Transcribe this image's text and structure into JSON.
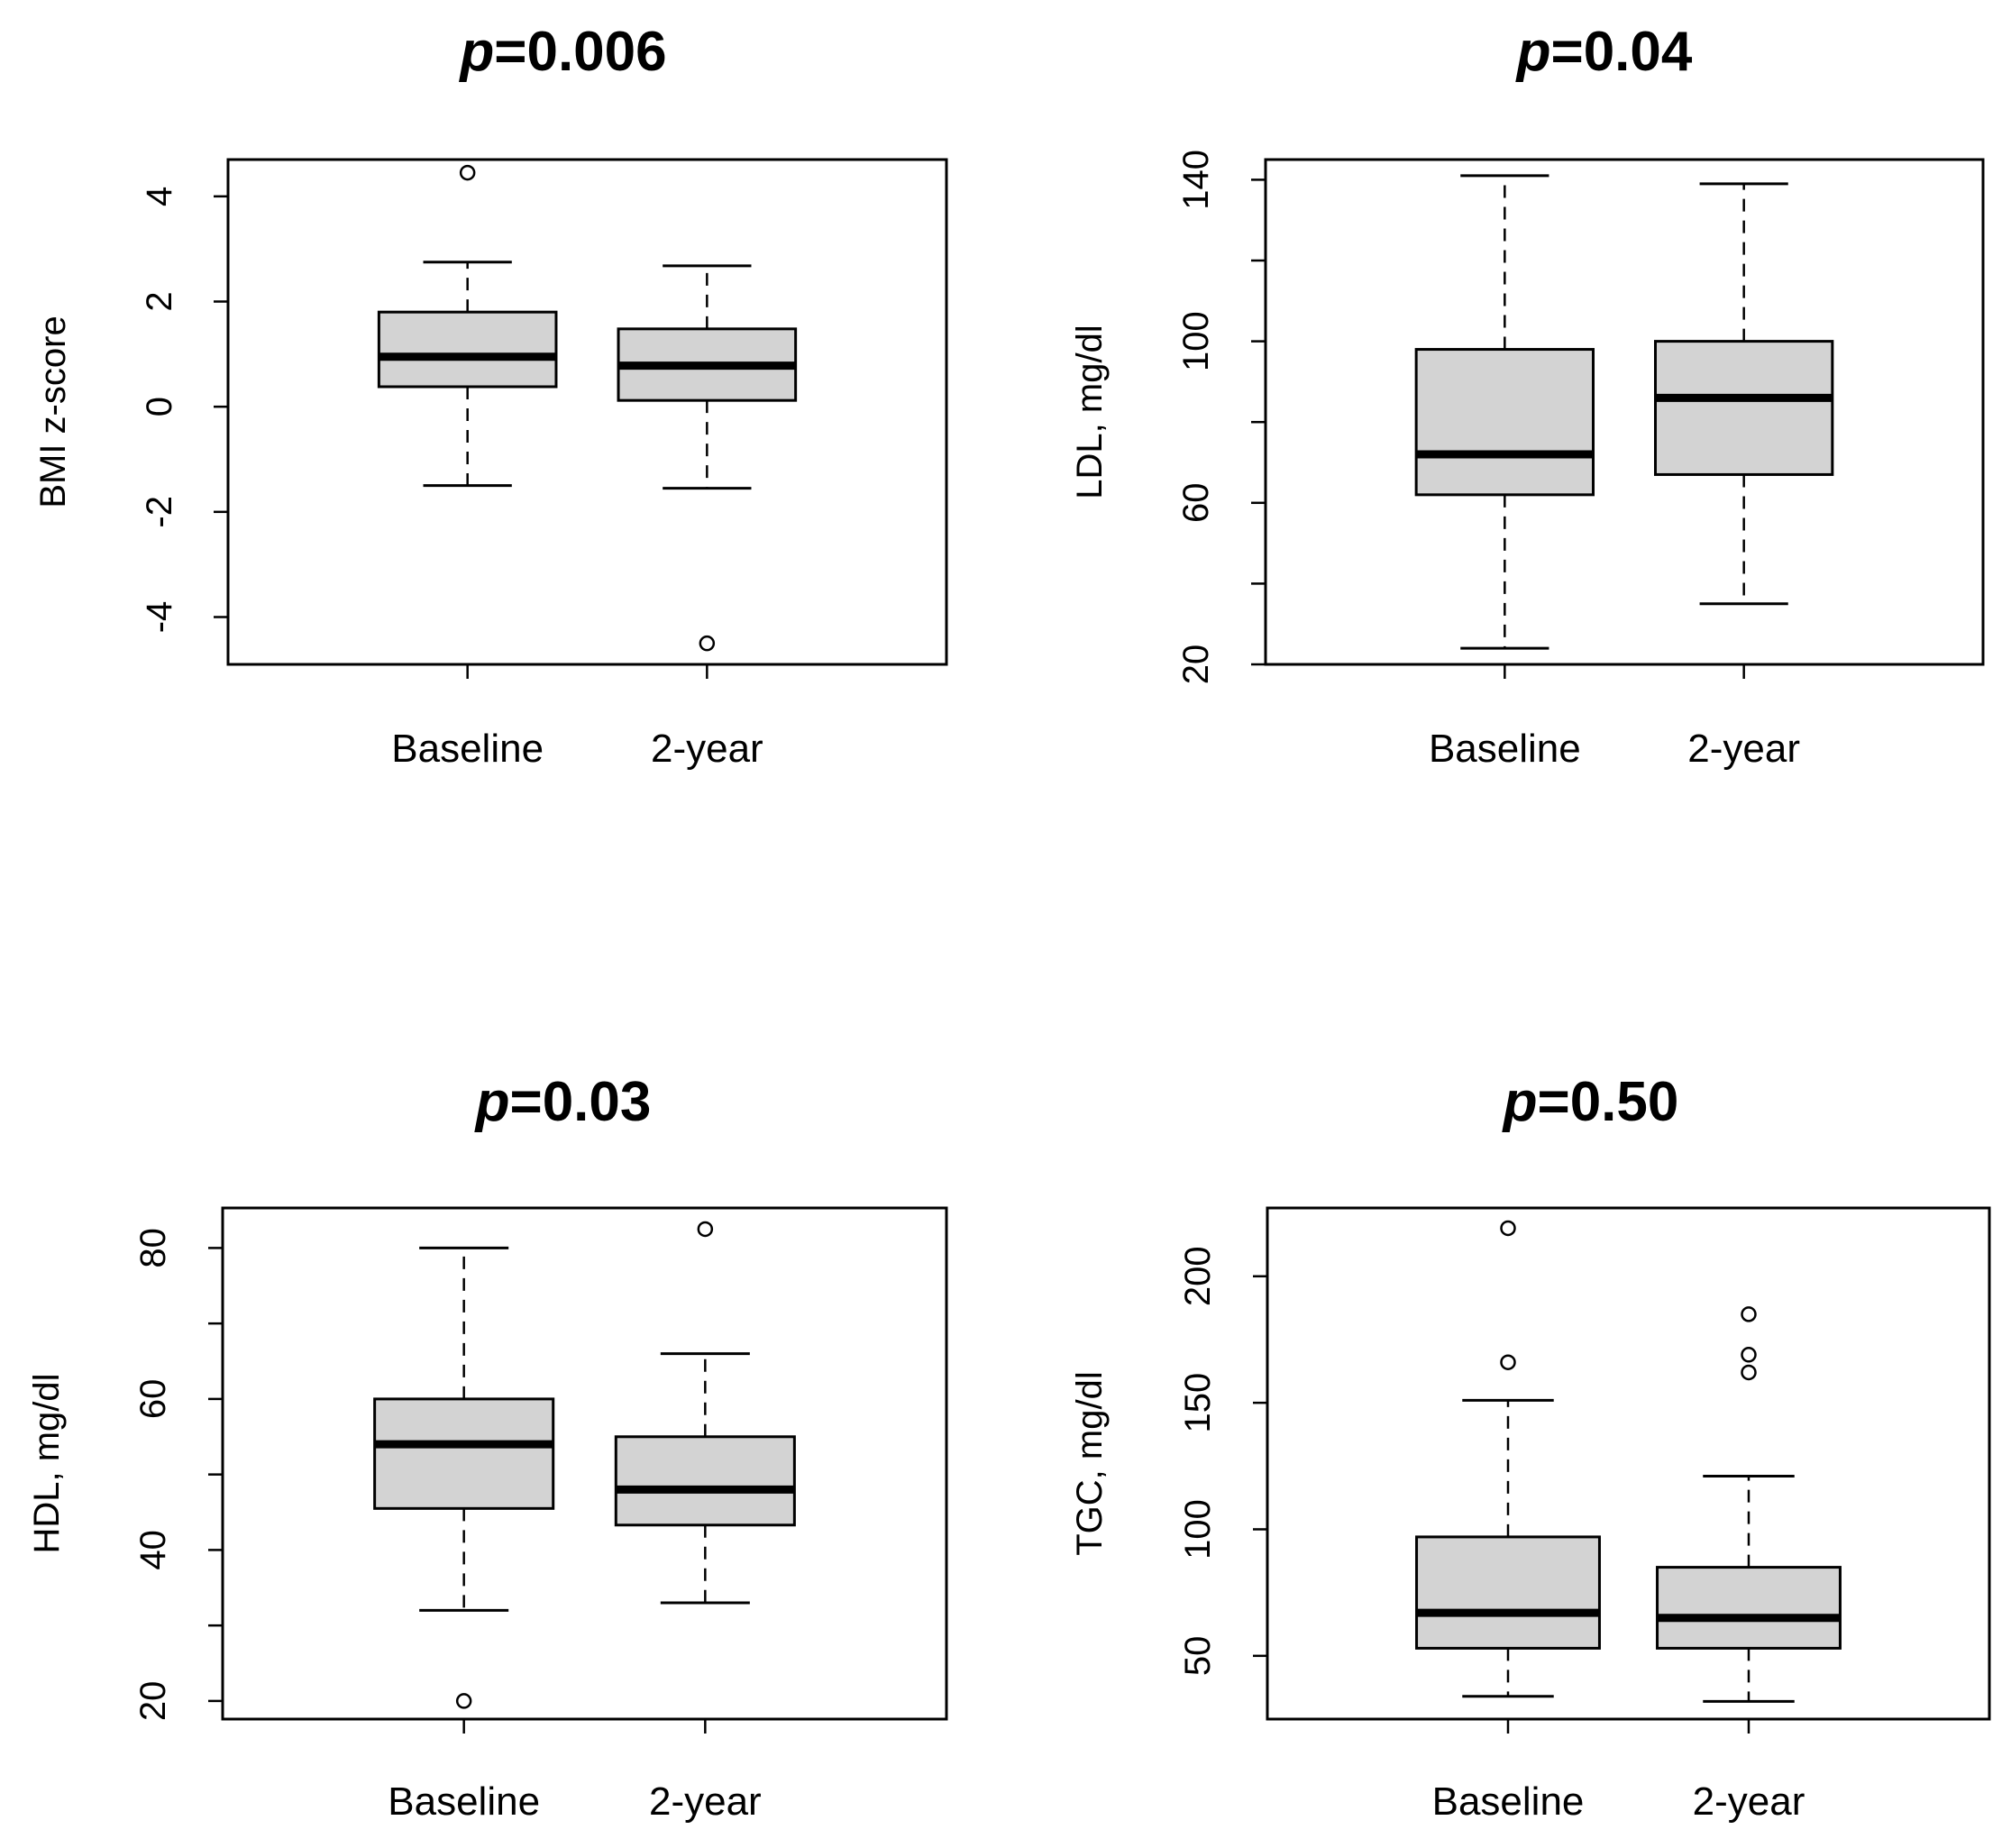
{
  "chart_data": [
    {
      "type": "boxplot",
      "title": "p=0.006",
      "title_prefix": "p",
      "title_value": "=0.006",
      "xlabel": "",
      "ylabel": "BMI z-score",
      "ylim": [
        -4.9,
        4.7
      ],
      "yticks": [
        4,
        2,
        0,
        -2,
        -4
      ],
      "categories": [
        "Baseline",
        "2-year"
      ],
      "boxes": [
        {
          "name": "Baseline",
          "whisker_low": -1.5,
          "q1": 0.38,
          "median": 0.95,
          "q3": 1.8,
          "whisker_high": 2.75,
          "outliers": [
            4.45
          ]
        },
        {
          "name": "2-year",
          "whisker_low": -1.55,
          "q1": 0.12,
          "median": 0.78,
          "q3": 1.48,
          "whisker_high": 2.68,
          "outliers": [
            -4.5
          ]
        }
      ]
    },
    {
      "type": "boxplot",
      "title": "p=0.04",
      "title_prefix": "p",
      "title_value": "=0.04",
      "xlabel": "",
      "ylabel": "LDL, mg/dl",
      "ylim": [
        20,
        145
      ],
      "yticks": [
        140,
        120,
        100,
        80,
        60,
        40,
        20
      ],
      "ytick_labels": [
        "140",
        "",
        "100",
        "",
        "60",
        "",
        "20"
      ],
      "categories": [
        "Baseline",
        "2-year"
      ],
      "boxes": [
        {
          "name": "Baseline",
          "whisker_low": 24,
          "q1": 62,
          "median": 72,
          "q3": 98,
          "whisker_high": 141,
          "outliers": []
        },
        {
          "name": "2-year",
          "whisker_low": 35,
          "q1": 67,
          "median": 86,
          "q3": 100,
          "whisker_high": 139,
          "outliers": []
        }
      ]
    },
    {
      "type": "boxplot",
      "title": "p=0.03",
      "title_prefix": "p",
      "title_value": "=0.03",
      "xlabel": "",
      "ylabel": "HDL, mg/dl",
      "ylim": [
        17.6,
        85.3
      ],
      "yticks": [
        80,
        70,
        60,
        50,
        40,
        30,
        20
      ],
      "ytick_labels": [
        "80",
        "",
        "60",
        "",
        "40",
        "",
        "20"
      ],
      "categories": [
        "Baseline",
        "2-year"
      ],
      "boxes": [
        {
          "name": "Baseline",
          "whisker_low": 32,
          "q1": 45.5,
          "median": 54,
          "q3": 60,
          "whisker_high": 80,
          "outliers": [
            20
          ]
        },
        {
          "name": "2-year",
          "whisker_low": 33,
          "q1": 43.3,
          "median": 48,
          "q3": 55,
          "whisker_high": 66,
          "outliers": [
            82.5
          ]
        }
      ]
    },
    {
      "type": "boxplot",
      "title": "p=0.50",
      "title_prefix": "p",
      "title_value": "=0.50",
      "xlabel": "",
      "ylabel": "TGC, mg/dl",
      "ylim": [
        25,
        227
      ],
      "yticks": [
        200,
        150,
        100,
        50
      ],
      "categories": [
        "Baseline",
        "2-year"
      ],
      "boxes": [
        {
          "name": "Baseline",
          "whisker_low": 34,
          "q1": 53,
          "median": 67,
          "q3": 97,
          "whisker_high": 151,
          "outliers": [
            166,
            219
          ]
        },
        {
          "name": "2-year",
          "whisker_low": 32,
          "q1": 53,
          "median": 65,
          "q3": 85,
          "whisker_high": 121,
          "outliers": [
            162,
            169,
            185
          ]
        }
      ]
    }
  ]
}
